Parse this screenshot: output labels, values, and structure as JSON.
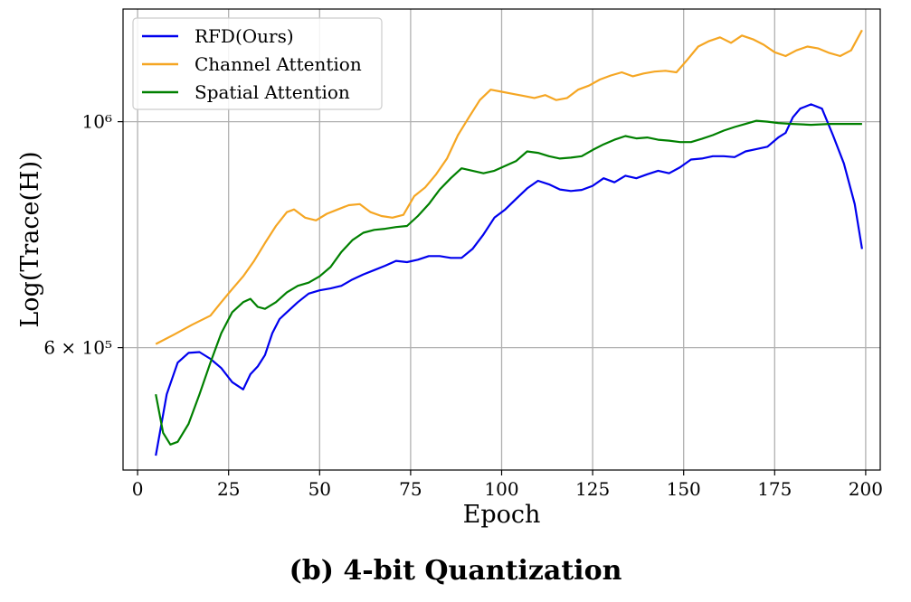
{
  "caption": "(b) 4-bit Quantization",
  "chart_data": {
    "type": "line",
    "xlabel": "Epoch",
    "ylabel": "Log(Trace(H))",
    "xlim": [
      -4,
      204
    ],
    "ylim": [
      455000,
      1290000
    ],
    "y_scale": "log",
    "grid": true,
    "legend_position": "top-left",
    "x_ticks": [
      0,
      25,
      50,
      75,
      100,
      125,
      150,
      175,
      200
    ],
    "y_ticks": [
      {
        "value": 600000,
        "label": "6 × 10⁵"
      },
      {
        "value": 1000000,
        "label": "10⁶"
      }
    ],
    "series": [
      {
        "name": "RFD(Ours)",
        "color": "#0000ee",
        "x": [
          5,
          8,
          11,
          14,
          17,
          20,
          23,
          26,
          29,
          31,
          33,
          35,
          37,
          39,
          41,
          44,
          47,
          50,
          53,
          56,
          59,
          62,
          65,
          68,
          71,
          74,
          77,
          80,
          83,
          86,
          89,
          92,
          95,
          98,
          101,
          104,
          107,
          110,
          113,
          116,
          119,
          122,
          125,
          128,
          131,
          134,
          137,
          140,
          143,
          146,
          149,
          152,
          155,
          158,
          161,
          164,
          167,
          170,
          173,
          176,
          178,
          180,
          182,
          185,
          188,
          191,
          194,
          197,
          199
        ],
        "y": [
          470000,
          540000,
          580000,
          593000,
          594000,
          585000,
          573000,
          555000,
          546000,
          565000,
          575000,
          590000,
          620000,
          640000,
          650000,
          665000,
          678000,
          683000,
          686000,
          690000,
          700000,
          708000,
          715000,
          722000,
          730000,
          728000,
          732000,
          738000,
          738000,
          735000,
          735000,
          750000,
          775000,
          805000,
          820000,
          840000,
          860000,
          875000,
          868000,
          858000,
          855000,
          857000,
          865000,
          880000,
          872000,
          885000,
          880000,
          888000,
          895000,
          890000,
          902000,
          918000,
          920000,
          925000,
          925000,
          923000,
          935000,
          940000,
          945000,
          965000,
          975000,
          1010000,
          1030000,
          1040000,
          1030000,
          970000,
          910000,
          830000,
          750000
        ]
      },
      {
        "name": "Channel Attention",
        "color": "#f5a623",
        "x": [
          5,
          10,
          15,
          20,
          23,
          26,
          29,
          32,
          35,
          38,
          41,
          43,
          46,
          49,
          52,
          55,
          58,
          61,
          64,
          67,
          70,
          73,
          76,
          79,
          82,
          85,
          88,
          91,
          94,
          97,
          100,
          103,
          106,
          109,
          112,
          115,
          118,
          121,
          124,
          127,
          130,
          133,
          136,
          139,
          142,
          145,
          148,
          151,
          154,
          157,
          160,
          163,
          166,
          169,
          172,
          175,
          178,
          181,
          184,
          187,
          190,
          193,
          196,
          199
        ],
        "y": [
          605000,
          618000,
          632000,
          645000,
          665000,
          685000,
          705000,
          730000,
          760000,
          790000,
          815000,
          820000,
          805000,
          800000,
          812000,
          820000,
          828000,
          830000,
          815000,
          808000,
          805000,
          810000,
          845000,
          862000,
          888000,
          920000,
          970000,
          1010000,
          1050000,
          1075000,
          1070000,
          1065000,
          1060000,
          1055000,
          1062000,
          1050000,
          1055000,
          1075000,
          1085000,
          1100000,
          1110000,
          1118000,
          1108000,
          1115000,
          1120000,
          1122000,
          1118000,
          1150000,
          1185000,
          1200000,
          1210000,
          1195000,
          1215000,
          1205000,
          1190000,
          1170000,
          1160000,
          1175000,
          1185000,
          1180000,
          1168000,
          1160000,
          1175000,
          1230000
        ]
      },
      {
        "name": "Spatial Attention",
        "color": "#008000",
        "x": [
          5,
          7,
          9,
          11,
          14,
          17,
          20,
          23,
          26,
          29,
          31,
          33,
          35,
          38,
          41,
          44,
          47,
          50,
          53,
          56,
          59,
          62,
          65,
          68,
          71,
          74,
          77,
          80,
          83,
          86,
          89,
          92,
          95,
          98,
          101,
          104,
          107,
          110,
          113,
          116,
          119,
          122,
          125,
          128,
          131,
          134,
          137,
          140,
          143,
          146,
          149,
          152,
          155,
          158,
          161,
          164,
          167,
          170,
          173,
          176,
          180,
          185,
          190,
          195,
          199
        ],
        "y": [
          540000,
          495000,
          482000,
          485000,
          505000,
          540000,
          580000,
          620000,
          650000,
          665000,
          670000,
          658000,
          655000,
          665000,
          680000,
          690000,
          695000,
          705000,
          720000,
          745000,
          765000,
          778000,
          783000,
          785000,
          788000,
          790000,
          808000,
          830000,
          858000,
          880000,
          900000,
          895000,
          890000,
          895000,
          905000,
          915000,
          935000,
          932000,
          925000,
          920000,
          922000,
          925000,
          938000,
          950000,
          960000,
          968000,
          963000,
          965000,
          960000,
          958000,
          955000,
          955000,
          962000,
          970000,
          980000,
          988000,
          995000,
          1002000,
          1000000,
          997000,
          995000,
          993000,
          995000,
          995000,
          995000
        ]
      }
    ]
  }
}
